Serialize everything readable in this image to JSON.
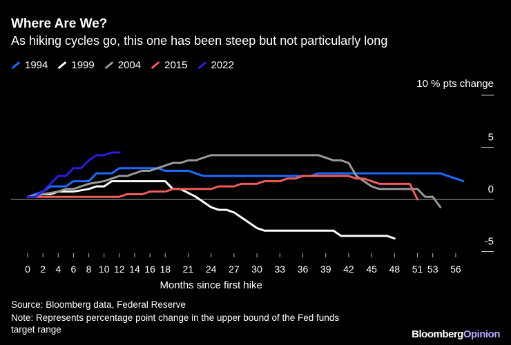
{
  "title": "Where Are We?",
  "subtitle": "As hiking cycles go, this one has been steep but not particularly long",
  "footer": {
    "source": "Source: Bloomberg data, Federal Reserve",
    "note1": "Note: Represents percentage point change in the upper bound of the Fed funds",
    "note2": "target range"
  },
  "logo": {
    "a": "Bloomberg",
    "b": "Opinion"
  },
  "chart_data": {
    "type": "line",
    "title": "Where Are We?",
    "xlabel": "Months since first hike",
    "ylabel": "% pts  change",
    "ylim": [
      -5,
      10
    ],
    "xlim": [
      0,
      58
    ],
    "xticks": [
      0,
      2,
      4,
      6,
      8,
      10,
      12,
      14,
      16,
      18,
      21,
      24,
      27,
      30,
      33,
      36,
      39,
      42,
      45,
      48,
      51,
      53,
      56
    ],
    "yticks": [
      {
        "v": 10,
        "label": "10"
      },
      {
        "v": 5,
        "label": "5"
      },
      {
        "v": 0,
        "label": "0"
      },
      {
        "v": -5,
        "label": "-5"
      }
    ],
    "top_label": "% pts  change",
    "series": [
      {
        "name": "1994",
        "color": "#1a6dff",
        "points": [
          [
            0,
            0.25
          ],
          [
            1,
            0.5
          ],
          [
            2,
            0.75
          ],
          [
            3,
            1.25
          ],
          [
            5,
            1.25
          ],
          [
            6,
            1.75
          ],
          [
            8,
            1.75
          ],
          [
            9,
            2.5
          ],
          [
            11,
            2.5
          ],
          [
            12,
            3.0
          ],
          [
            17,
            3.0
          ],
          [
            18,
            2.75
          ],
          [
            21,
            2.75
          ],
          [
            23,
            2.25
          ],
          [
            37,
            2.25
          ],
          [
            38,
            2.5
          ],
          [
            54,
            2.5
          ],
          [
            55,
            2.25
          ],
          [
            56,
            2.0
          ],
          [
            57,
            1.75
          ]
        ]
      },
      {
        "name": "1999",
        "color": "#ffffff",
        "points": [
          [
            0,
            0.25
          ],
          [
            2,
            0.5
          ],
          [
            3,
            0.5
          ],
          [
            4,
            0.75
          ],
          [
            6,
            0.75
          ],
          [
            8,
            1.0
          ],
          [
            9,
            1.25
          ],
          [
            10,
            1.25
          ],
          [
            11,
            1.75
          ],
          [
            18,
            1.75
          ],
          [
            19,
            1.0
          ],
          [
            20,
            1.0
          ],
          [
            22,
            0.25
          ],
          [
            23,
            -0.25
          ],
          [
            24,
            -0.75
          ],
          [
            25,
            -1.0
          ],
          [
            26,
            -1.0
          ],
          [
            27,
            -1.25
          ],
          [
            28,
            -1.75
          ],
          [
            30,
            -2.75
          ],
          [
            31,
            -3.0
          ],
          [
            40,
            -3.0
          ],
          [
            41,
            -3.5
          ],
          [
            47,
            -3.5
          ],
          [
            48,
            -3.75
          ]
        ]
      },
      {
        "name": "2004",
        "color": "#9a9a9a",
        "points": [
          [
            0,
            0.25
          ],
          [
            2,
            0.5
          ],
          [
            4,
            0.75
          ],
          [
            5,
            1.0
          ],
          [
            6,
            1.0
          ],
          [
            8,
            1.5
          ],
          [
            10,
            1.75
          ],
          [
            11,
            2.0
          ],
          [
            12,
            2.25
          ],
          [
            13,
            2.25
          ],
          [
            15,
            2.75
          ],
          [
            16,
            2.75
          ],
          [
            17,
            3.0
          ],
          [
            18,
            3.25
          ],
          [
            19,
            3.5
          ],
          [
            20,
            3.5
          ],
          [
            21,
            3.75
          ],
          [
            22,
            3.75
          ],
          [
            24,
            4.25
          ],
          [
            38,
            4.25
          ],
          [
            39,
            4.0
          ],
          [
            40,
            3.75
          ],
          [
            41,
            3.75
          ],
          [
            42,
            3.5
          ],
          [
            43,
            2.25
          ],
          [
            44,
            1.75
          ],
          [
            45,
            1.25
          ],
          [
            46,
            1.0
          ],
          [
            51,
            1.0
          ],
          [
            52,
            0.25
          ],
          [
            53,
            0.25
          ],
          [
            54,
            -0.75
          ]
        ]
      },
      {
        "name": "2015",
        "color": "#f25c5c",
        "points": [
          [
            0,
            0.25
          ],
          [
            12,
            0.25
          ],
          [
            13,
            0.5
          ],
          [
            15,
            0.5
          ],
          [
            16,
            0.75
          ],
          [
            18,
            0.75
          ],
          [
            19,
            1.0
          ],
          [
            24,
            1.0
          ],
          [
            25,
            1.25
          ],
          [
            27,
            1.25
          ],
          [
            28,
            1.5
          ],
          [
            30,
            1.5
          ],
          [
            31,
            1.75
          ],
          [
            33,
            1.75
          ],
          [
            34,
            2.0
          ],
          [
            35,
            2.0
          ],
          [
            36,
            2.25
          ],
          [
            42,
            2.25
          ],
          [
            43,
            2.0
          ],
          [
            44,
            2.0
          ],
          [
            46,
            1.5
          ],
          [
            50,
            1.5
          ],
          [
            51,
            0.0
          ]
        ]
      },
      {
        "name": "2022",
        "color": "#2b1ee0",
        "points": [
          [
            0,
            0.25
          ],
          [
            1,
            0.25
          ],
          [
            2,
            0.75
          ],
          [
            3,
            1.5
          ],
          [
            4,
            2.25
          ],
          [
            5,
            2.25
          ],
          [
            6,
            3.0
          ],
          [
            7,
            3.0
          ],
          [
            8,
            3.75
          ],
          [
            9,
            4.25
          ],
          [
            10,
            4.25
          ],
          [
            11,
            4.5
          ],
          [
            12,
            4.5
          ]
        ]
      }
    ]
  }
}
